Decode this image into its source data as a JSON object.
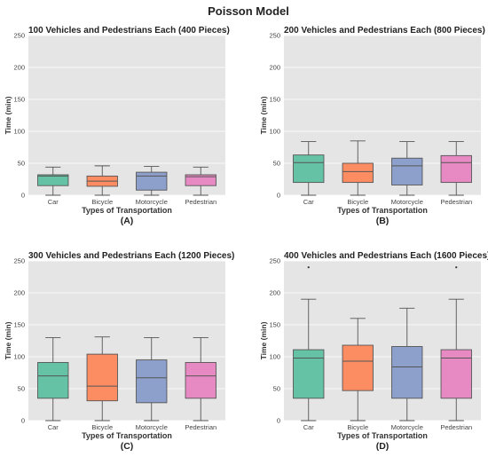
{
  "suptitle": "Poisson Model",
  "colors": {
    "panel_bg": "#e5e5e5",
    "grid": "#ffffff",
    "Car": "#66c2a5",
    "Bicycle": "#fc8d62",
    "Motorcycle": "#8da0cb",
    "Pedestrian": "#e78ac3",
    "edge": "#555555"
  },
  "chart_data": [
    {
      "type": "box",
      "title": "100 Vehicles and Pedestrians Each (400 Pieces)",
      "letter": "(A)",
      "xlabel": "Types of Transportation",
      "ylabel": "Time (min)",
      "ylim": [
        0,
        250
      ],
      "yticks": [
        0,
        50,
        100,
        150,
        200,
        250
      ],
      "categories": [
        "Car",
        "Bicycle",
        "Motorcycle",
        "Pedestrian"
      ],
      "boxes": [
        {
          "min": 0,
          "q1": 15,
          "median": 30,
          "q3": 32,
          "max": 44,
          "outliers": []
        },
        {
          "min": 0,
          "q1": 14,
          "median": 22,
          "q3": 30,
          "max": 46,
          "outliers": []
        },
        {
          "min": 0,
          "q1": 8,
          "median": 30,
          "q3": 36,
          "max": 45,
          "outliers": []
        },
        {
          "min": 0,
          "q1": 15,
          "median": 29,
          "q3": 32,
          "max": 44,
          "outliers": []
        }
      ]
    },
    {
      "type": "box",
      "title": "200 Vehicles and Pedestrians Each (800 Pieces)",
      "letter": "(B)",
      "xlabel": "Types of Transportation",
      "ylabel": "Time (min)",
      "ylim": [
        0,
        250
      ],
      "yticks": [
        0,
        50,
        100,
        150,
        200,
        250
      ],
      "categories": [
        "Car",
        "Bicycle",
        "Motorcycle",
        "Pedestrian"
      ],
      "boxes": [
        {
          "min": 0,
          "q1": 20,
          "median": 51,
          "q3": 63,
          "max": 84,
          "outliers": []
        },
        {
          "min": 0,
          "q1": 20,
          "median": 37,
          "q3": 50,
          "max": 85,
          "outliers": []
        },
        {
          "min": 0,
          "q1": 16,
          "median": 46,
          "q3": 58,
          "max": 84,
          "outliers": []
        },
        {
          "min": 0,
          "q1": 20,
          "median": 51,
          "q3": 62,
          "max": 84,
          "outliers": []
        }
      ]
    },
    {
      "type": "box",
      "title": "300 Vehicles and Pedestrians Each (1200 Pieces)",
      "letter": "(C)",
      "xlabel": "Types of Transportation",
      "ylabel": "Time (min)",
      "ylim": [
        0,
        250
      ],
      "yticks": [
        0,
        50,
        100,
        150,
        200,
        250
      ],
      "categories": [
        "Car",
        "Bicycle",
        "Motorcycle",
        "Pedestrian"
      ],
      "boxes": [
        {
          "min": 0,
          "q1": 35,
          "median": 70,
          "q3": 91,
          "max": 130,
          "outliers": []
        },
        {
          "min": 0,
          "q1": 31,
          "median": 54,
          "q3": 104,
          "max": 131,
          "outliers": []
        },
        {
          "min": 0,
          "q1": 28,
          "median": 67,
          "q3": 95,
          "max": 130,
          "outliers": []
        },
        {
          "min": 0,
          "q1": 35,
          "median": 70,
          "q3": 91,
          "max": 130,
          "outliers": []
        }
      ]
    },
    {
      "type": "box",
      "title": "400 Vehicles and Pedestrians Each (1600 Pieces)",
      "letter": "(D)",
      "xlabel": "Types of Transportation",
      "ylabel": "Time (min)",
      "ylim": [
        0,
        250
      ],
      "yticks": [
        0,
        50,
        100,
        150,
        200,
        250
      ],
      "categories": [
        "Car",
        "Bicycle",
        "Motorcycle",
        "Pedestrian"
      ],
      "boxes": [
        {
          "min": 0,
          "q1": 35,
          "median": 98,
          "q3": 111,
          "max": 190,
          "outliers": [
            240
          ]
        },
        {
          "min": 0,
          "q1": 47,
          "median": 93,
          "q3": 118,
          "max": 160,
          "outliers": []
        },
        {
          "min": 0,
          "q1": 35,
          "median": 84,
          "q3": 116,
          "max": 176,
          "outliers": []
        },
        {
          "min": 0,
          "q1": 35,
          "median": 98,
          "q3": 111,
          "max": 190,
          "outliers": [
            240
          ]
        }
      ]
    }
  ]
}
